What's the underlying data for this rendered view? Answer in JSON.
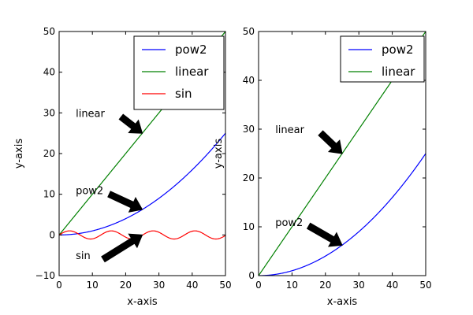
{
  "chart_data": [
    {
      "type": "line",
      "xlabel": "x-axis",
      "ylabel": "y-axis",
      "xlim": [
        0,
        50
      ],
      "ylim": [
        -10,
        50
      ],
      "xticks": [
        "0",
        "10",
        "20",
        "30",
        "40",
        "50"
      ],
      "yticks": [
        "−10",
        "0",
        "10",
        "20",
        "30",
        "40",
        "50"
      ],
      "grid": false,
      "legend_position": "top-right",
      "series": [
        {
          "name": "pow2",
          "color": "#0000ff",
          "formula": "x^2/100",
          "x": [
            0,
            5,
            10,
            15,
            20,
            25,
            30,
            35,
            40,
            45,
            50
          ],
          "y": [
            0,
            0.25,
            1,
            2.25,
            4,
            6.25,
            9,
            12.25,
            16,
            20.25,
            25
          ]
        },
        {
          "name": "linear",
          "color": "#008000",
          "formula": "x",
          "x": [
            0,
            50
          ],
          "y": [
            0,
            50
          ]
        },
        {
          "name": "sin",
          "color": "#ff0000",
          "formula": "sin(x/2)",
          "x": [
            0,
            3.14,
            6.28,
            9.42,
            12.57,
            15.71,
            18.85,
            21.99,
            25.13,
            28.27,
            31.42,
            34.56,
            37.7,
            40.84,
            43.98,
            47.12,
            50
          ],
          "y": [
            0,
            1,
            0,
            -1,
            0,
            1,
            0,
            -1,
            0,
            1,
            0,
            -1,
            0,
            1,
            0,
            -1,
            -0.13
          ]
        }
      ],
      "annotations": [
        {
          "text": "linear",
          "text_x": 5,
          "text_y": 30,
          "arrow_to_x": 25,
          "arrow_to_y": 25
        },
        {
          "text": "pow2",
          "text_x": 5,
          "text_y": 11,
          "arrow_to_x": 25,
          "arrow_to_y": 6.25
        },
        {
          "text": "sin",
          "text_x": 5,
          "text_y": -5,
          "arrow_to_x": 25,
          "arrow_to_y": 0
        }
      ]
    },
    {
      "type": "line",
      "xlabel": "x-axis",
      "ylabel": "y-axis",
      "xlim": [
        0,
        50
      ],
      "ylim": [
        0,
        50
      ],
      "xticks": [
        "0",
        "10",
        "20",
        "30",
        "40",
        "50"
      ],
      "yticks": [
        "0",
        "10",
        "20",
        "30",
        "40",
        "50"
      ],
      "grid": false,
      "legend_position": "top-right",
      "series": [
        {
          "name": "pow2",
          "color": "#0000ff",
          "formula": "x^2/100",
          "x": [
            0,
            5,
            10,
            15,
            20,
            25,
            30,
            35,
            40,
            45,
            50
          ],
          "y": [
            0,
            0.25,
            1,
            2.25,
            4,
            6.25,
            9,
            12.25,
            16,
            20.25,
            25
          ]
        },
        {
          "name": "linear",
          "color": "#008000",
          "formula": "x",
          "x": [
            0,
            50
          ],
          "y": [
            0,
            50
          ]
        }
      ],
      "annotations": [
        {
          "text": "linear",
          "text_x": 5,
          "text_y": 30,
          "arrow_to_x": 25,
          "arrow_to_y": 25
        },
        {
          "text": "pow2",
          "text_x": 5,
          "text_y": 11,
          "arrow_to_x": 25,
          "arrow_to_y": 6.25
        }
      ]
    }
  ]
}
